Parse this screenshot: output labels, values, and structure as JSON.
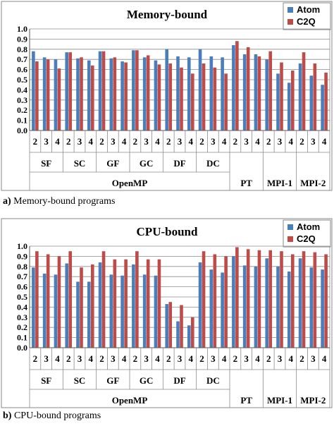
{
  "colors": {
    "atom": "#4a7ebb",
    "c2q": "#be4b48",
    "frame": "#8a8a8a",
    "grid": "#8c8c8c"
  },
  "captions": [
    {
      "letter": "a)",
      "text": " Memory-bound programs"
    },
    {
      "letter": "b)",
      "text": " CPU-bound programs"
    }
  ],
  "chart_data": [
    {
      "type": "bar",
      "title": "Memory-bound",
      "ylim": [
        0,
        1.0
      ],
      "yticks": [
        "0.0",
        "0.1",
        "0.2",
        "0.3",
        "0.4",
        "0.5",
        "0.6",
        "0.7",
        "0.8",
        "0.9",
        "1.0"
      ],
      "legend": [
        "Atom",
        "C2Q"
      ],
      "legend_position": "top-right",
      "grid": true,
      "categories": [
        "2",
        "3",
        "4",
        "2",
        "3",
        "4",
        "2",
        "3",
        "4",
        "2",
        "3",
        "4",
        "2",
        "3",
        "4",
        "2",
        "3",
        "4",
        "2",
        "3",
        "4",
        "2",
        "3",
        "4",
        "2",
        "3",
        "4"
      ],
      "groups": [
        "SF",
        "SC",
        "GF",
        "GC",
        "DF",
        "DC",
        "PT",
        "MPI-1",
        "MPI-2"
      ],
      "supergroups": [
        "OpenMP"
      ],
      "series": [
        {
          "name": "Atom",
          "values": [
            0.78,
            0.72,
            0.7,
            0.77,
            0.71,
            0.69,
            0.78,
            0.71,
            0.68,
            0.79,
            0.72,
            0.69,
            0.8,
            0.73,
            0.72,
            0.8,
            0.73,
            0.72,
            0.84,
            0.75,
            0.75,
            0.7,
            0.56,
            0.47,
            0.66,
            0.54,
            0.45
          ]
        },
        {
          "name": "C2Q",
          "values": [
            0.68,
            0.7,
            0.61,
            0.77,
            0.72,
            0.64,
            0.78,
            0.72,
            0.67,
            0.79,
            0.74,
            0.65,
            0.66,
            0.62,
            0.56,
            0.66,
            0.62,
            0.56,
            0.88,
            0.82,
            0.73,
            0.78,
            0.67,
            0.59,
            0.77,
            0.66,
            0.57
          ]
        }
      ]
    },
    {
      "type": "bar",
      "title": "CPU-bound",
      "ylim": [
        0,
        1.0
      ],
      "yticks": [
        "0.0",
        "0.1",
        "0.2",
        "0.3",
        "0.4",
        "0.5",
        "0.6",
        "0.7",
        "0.8",
        "0.9",
        "1.0"
      ],
      "legend": [
        "Atom",
        "C2Q"
      ],
      "legend_position": "top-right",
      "grid": true,
      "categories": [
        "2",
        "3",
        "4",
        "2",
        "3",
        "4",
        "2",
        "3",
        "4",
        "2",
        "3",
        "4",
        "2",
        "3",
        "4",
        "2",
        "3",
        "4",
        "2",
        "3",
        "4",
        "2",
        "3",
        "4",
        "2",
        "3",
        "4"
      ],
      "groups": [
        "SF",
        "SC",
        "GF",
        "GC",
        "DF",
        "DC",
        "PT",
        "MPI-1",
        "MPI-2"
      ],
      "supergroups": [
        "OpenMP"
      ],
      "series": [
        {
          "name": "Atom",
          "values": [
            0.79,
            0.73,
            0.72,
            0.83,
            0.65,
            0.65,
            0.84,
            0.72,
            0.71,
            0.82,
            0.72,
            0.71,
            0.43,
            0.26,
            0.22,
            0.84,
            0.77,
            0.74,
            0.9,
            0.81,
            0.8,
            0.88,
            0.8,
            0.75,
            0.88,
            0.79,
            0.77
          ]
        },
        {
          "name": "C2Q",
          "values": [
            0.95,
            0.92,
            0.9,
            0.95,
            0.79,
            0.82,
            0.95,
            0.87,
            0.87,
            0.95,
            0.87,
            0.87,
            0.45,
            0.42,
            0.3,
            0.95,
            0.92,
            0.9,
            0.99,
            0.97,
            0.96,
            0.96,
            0.95,
            0.92,
            0.95,
            0.94,
            0.92
          ]
        }
      ]
    }
  ]
}
